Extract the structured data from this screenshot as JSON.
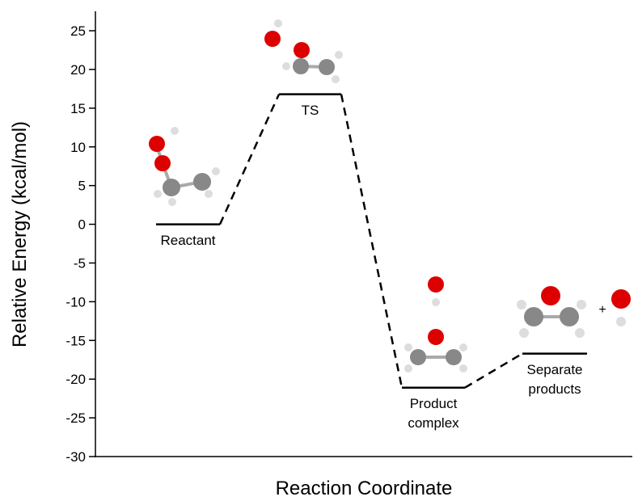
{
  "chart_data": {
    "type": "energy-diagram",
    "ylabel": "Relative Energy (kcal/mol)",
    "xlabel": "Reaction Coordinate",
    "categories": [
      "Reactant",
      "TS",
      "Product complex",
      "Separate products"
    ],
    "values": [
      0,
      16.8,
      -21.1,
      -16.7
    ],
    "ylim": [
      -30,
      27.3
    ],
    "yticks": [
      -30,
      -25,
      -20,
      -15,
      -10,
      -5,
      0,
      5,
      10,
      15,
      20,
      25
    ],
    "color": "#000000"
  }
}
